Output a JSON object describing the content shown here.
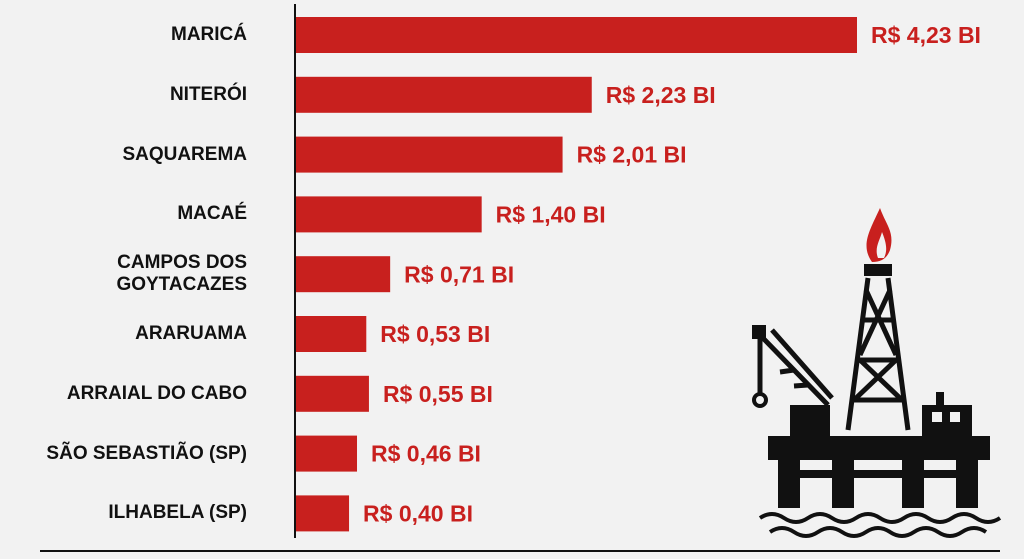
{
  "chart_data": {
    "type": "bar",
    "orientation": "horizontal",
    "categories": [
      "MARICÁ",
      "NITERÓI",
      "SAQUAREMA",
      "MACAÉ",
      "CAMPOS DOS GOYTACAZES",
      "ARARUAMA",
      "ARRAIAL DO CABO",
      "SÃO SEBASTIÃO (SP)",
      "ILHABELA (SP)"
    ],
    "values": [
      4.23,
      2.23,
      2.01,
      1.4,
      0.71,
      0.53,
      0.55,
      0.46,
      0.4
    ],
    "value_labels": [
      "R$ 4,23 BI",
      "R$ 2,23 BI",
      "R$ 2,01 BI",
      "R$ 1,40 BI",
      "R$ 0,71 BI",
      "R$ 0,53 BI",
      "R$ 0,55 BI",
      "R$ 0,46 BI",
      "R$ 0,40 BI"
    ],
    "color": "#c8201e"
  }
}
